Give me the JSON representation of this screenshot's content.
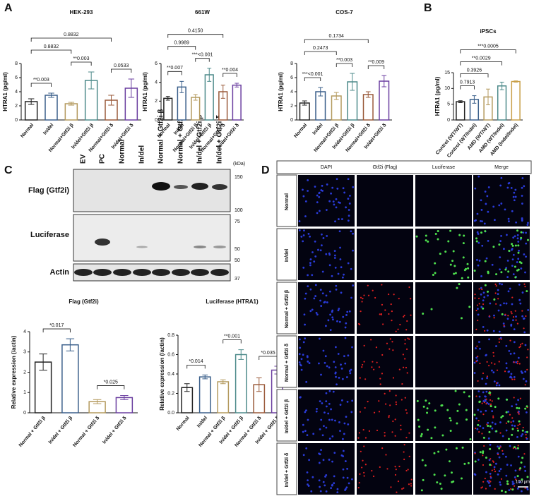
{
  "panels": [
    "A",
    "B",
    "C",
    "D"
  ],
  "chart_data": [
    {
      "type": "bar",
      "title": "HEK-293",
      "y_label": "HTRA1 (pg/ml)",
      "categories": [
        "Normal",
        "In/del",
        "Normal+Gtf2i β",
        "In/del+Gtf2i β",
        "Normal+Gtf2i δ",
        "In/del+Gtf2i δ"
      ],
      "values": [
        2.6,
        3.5,
        2.3,
        5.6,
        2.8,
        4.5
      ],
      "errors": [
        0.4,
        0.3,
        0.2,
        1.2,
        0.7,
        1.3
      ],
      "colors": [
        "#222222",
        "#3a5f8a",
        "#b49a5e",
        "#4d8a8a",
        "#9a5a3a",
        "#6b3fa0"
      ],
      "ylim": [
        0,
        8
      ],
      "yticks": [
        0,
        2,
        4,
        6,
        8
      ],
      "brackets": [
        {
          "label": "**0.003",
          "from": 0,
          "to": 1
        },
        {
          "label": "**0.003",
          "from": 2,
          "to": 3
        },
        {
          "label": "0.0533",
          "from": 4,
          "to": 5
        },
        {
          "label": "0.8832",
          "from": 0,
          "to": 2
        },
        {
          "label": "0.8832",
          "from": 0,
          "to": 4
        }
      ]
    },
    {
      "type": "bar",
      "title": "661W",
      "y_label": "HTRA1 (pg/ml)",
      "categories": [
        "Normal",
        "In/del",
        "Normal+Gtf2i β",
        "In/del+Gtf2i β",
        "Normal+Gtf2i δ",
        "In/del+Gtf2i δ"
      ],
      "values": [
        2.3,
        3.5,
        2.4,
        4.8,
        3.0,
        3.7
      ],
      "errors": [
        0.2,
        0.6,
        0.3,
        0.7,
        0.7,
        0.2
      ],
      "colors": [
        "#222222",
        "#3a5f8a",
        "#b49a5e",
        "#4d8a8a",
        "#9a5a3a",
        "#6b3fa0"
      ],
      "ylim": [
        0,
        6
      ],
      "yticks": [
        0,
        2,
        4,
        6
      ],
      "brackets": [
        {
          "label": "**0.007",
          "from": 0,
          "to": 1
        },
        {
          "label": "***<0.001",
          "from": 2,
          "to": 3
        },
        {
          "label": "**0.004",
          "from": 4,
          "to": 5
        },
        {
          "label": "0.9989",
          "from": 0,
          "to": 2
        },
        {
          "label": "0.4150",
          "from": 0,
          "to": 4
        }
      ]
    },
    {
      "type": "bar",
      "title": "COS-7",
      "y_label": "HTRA1 (pg/ml)",
      "categories": [
        "Normal",
        "In/del",
        "Normal+Gtf2i β",
        "In/del+Gtf2i β",
        "Normal+Gtf2i δ",
        "In/del+Gtf2i δ"
      ],
      "values": [
        2.4,
        4.0,
        3.4,
        5.4,
        3.6,
        5.5
      ],
      "errors": [
        0.3,
        0.6,
        0.5,
        1.2,
        0.4,
        0.8
      ],
      "colors": [
        "#222222",
        "#3a5f8a",
        "#b49a5e",
        "#4d8a8a",
        "#9a5a3a",
        "#6b3fa0"
      ],
      "ylim": [
        0,
        8
      ],
      "yticks": [
        0,
        2,
        4,
        6,
        8
      ],
      "brackets": [
        {
          "label": "***<0.001",
          "from": 0,
          "to": 1
        },
        {
          "label": "**0.003",
          "from": 2,
          "to": 3
        },
        {
          "label": "**0.009",
          "from": 4,
          "to": 5
        },
        {
          "label": "0.2473",
          "from": 0,
          "to": 2
        },
        {
          "label": "0.1734",
          "from": 0,
          "to": 4
        }
      ]
    },
    {
      "type": "bar",
      "title": "iPSCs",
      "y_label": "HTRA1 (pg/ml)",
      "categories": [
        "Control (WT/WT)",
        "Control (WT/Indel)",
        "AMD (WT/WT)",
        "AMD (WT/Indel)",
        "AMD (Indel/Indel)"
      ],
      "values": [
        5.8,
        6.5,
        7.3,
        10.8,
        12.2
      ],
      "errors": [
        0.3,
        1.2,
        2.5,
        1.2,
        0.2
      ],
      "colors": [
        "#222222",
        "#3a5f8a",
        "#b49a5e",
        "#4d8a8a",
        "#c9a04a"
      ],
      "ylim": [
        0,
        15
      ],
      "yticks": [
        0,
        5,
        10,
        15
      ],
      "brackets": [
        {
          "label": "0.7913",
          "from": 0,
          "to": 1
        },
        {
          "label": "0.3926",
          "from": 0,
          "to": 2
        },
        {
          "label": "**0.0029",
          "from": 0,
          "to": 3
        },
        {
          "label": "***0.0005",
          "from": 0,
          "to": 4
        }
      ]
    },
    {
      "type": "bar",
      "title": "Flag (Gtf2i)",
      "y_label": "Relative expression (/actin)",
      "categories": [
        "Normal + Gtf2i β",
        "In/del + Gtf2i β",
        "Normal + Gtf2i δ",
        "In/del + Gtf2i δ"
      ],
      "values": [
        2.5,
        3.35,
        0.55,
        0.75
      ],
      "errors": [
        0.4,
        0.3,
        0.1,
        0.1
      ],
      "colors": [
        "#222222",
        "#3a5f8a",
        "#b49a5e",
        "#6b3fa0"
      ],
      "ylim": [
        0,
        4
      ],
      "yticks": [
        0,
        1,
        2,
        3,
        4
      ],
      "brackets": [
        {
          "label": "*0.017",
          "from": 0,
          "to": 1
        },
        {
          "label": "*0.025",
          "from": 2,
          "to": 3
        }
      ]
    },
    {
      "type": "bar",
      "title": "Luciferase (HTRA1)",
      "y_label": "Relative expression (/actin)",
      "categories": [
        "Normal",
        "In/del",
        "Normal + Gtf2i β",
        "In/del + Gtf2i β",
        "Normal + Gtf2i δ",
        "In/del + Gtf2i δ"
      ],
      "values": [
        0.26,
        0.37,
        0.32,
        0.6,
        0.29,
        0.44
      ],
      "errors": [
        0.04,
        0.02,
        0.02,
        0.05,
        0.07,
        0.04
      ],
      "colors": [
        "#222222",
        "#3a5f8a",
        "#b49a5e",
        "#4d8a8a",
        "#9a5a3a",
        "#6b3fa0"
      ],
      "ylim": [
        0,
        0.8
      ],
      "yticks": [
        {
          "value": 0,
          "label": "0.0"
        },
        0.2,
        0.4,
        0.6,
        0.8
      ],
      "brackets": [
        {
          "label": "*0.014",
          "from": 0,
          "to": 1
        },
        {
          "label": "**0.001",
          "from": 2,
          "to": 3
        },
        {
          "label": "*0.035",
          "from": 4,
          "to": 5
        }
      ]
    }
  ],
  "blot": {
    "lanes": [
      "EV",
      "PC",
      "Normal",
      "In/del",
      "Normal + Gtf2i β",
      "Normal + Gtf2i δ",
      "In/del + Gtf2i β",
      "In/del + Gtf2i δ"
    ],
    "rows": [
      "Flag (Gtf2i)",
      "Luciferase",
      "Actin"
    ],
    "unit": "(kDa)",
    "markers": [
      "150",
      "100",
      "75",
      "50",
      "50",
      "37"
    ]
  },
  "microscopy": {
    "columns": [
      "DAPI",
      "Gtf2i (Flag)",
      "Luciferase",
      "Merge"
    ],
    "rows": [
      "Normal",
      "In/del",
      "Normal + Gtf2i β",
      "Normal + Gtf2i δ",
      "In/del + Gtf2i β",
      "In/del + Gtf2i δ"
    ],
    "scale_bar": "100 µm"
  }
}
